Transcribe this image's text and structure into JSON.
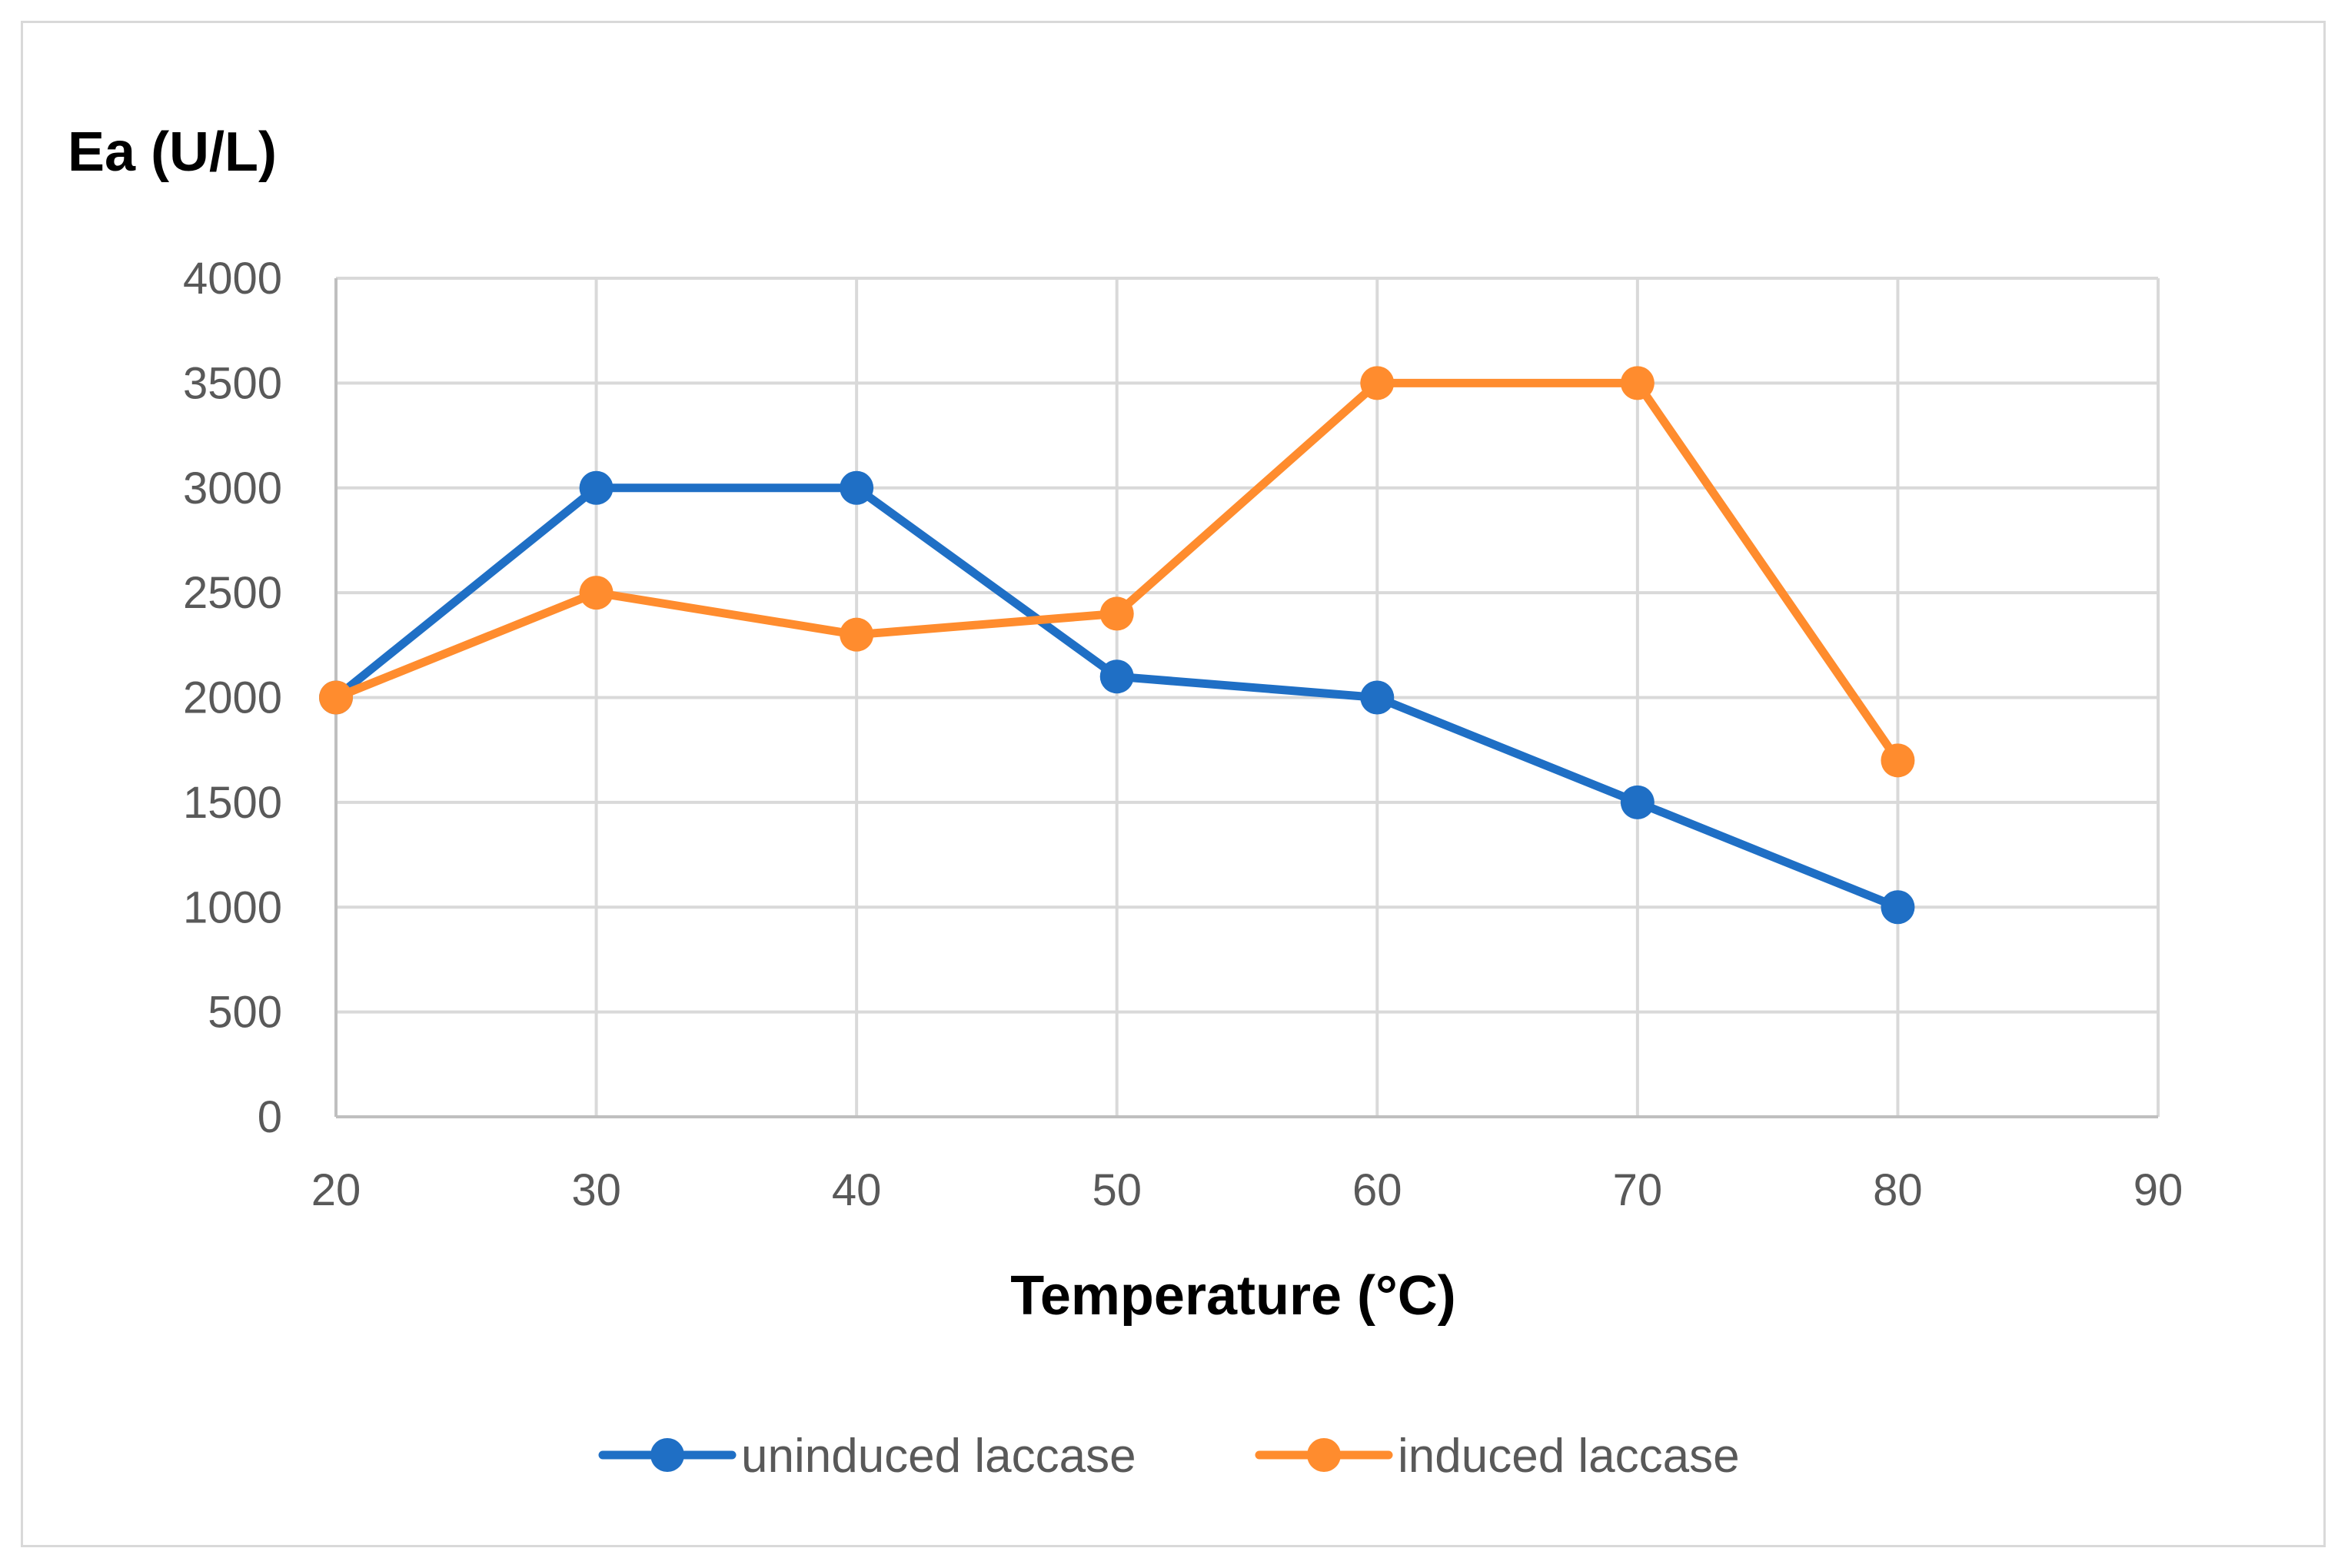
{
  "chart_data": {
    "type": "line",
    "title": "",
    "xlabel": "Temperature (°C)",
    "ylabel": "Ea (U/L)",
    "xlim": [
      20,
      90
    ],
    "ylim": [
      0,
      4000
    ],
    "x_ticks": [
      20,
      30,
      40,
      50,
      60,
      70,
      80,
      90
    ],
    "y_ticks": [
      0,
      500,
      1000,
      1500,
      2000,
      2500,
      3000,
      3500,
      4000
    ],
    "grid": true,
    "legend_position": "bottom",
    "series": [
      {
        "name": "uninduced laccase",
        "color": "#1f6fc5",
        "x": [
          20,
          30,
          40,
          50,
          60,
          70,
          80
        ],
        "y": [
          2000,
          3000,
          3000,
          2100,
          2000,
          1500,
          1000
        ]
      },
      {
        "name": "induced laccase",
        "color": "#ff8c2e",
        "x": [
          20,
          30,
          40,
          50,
          60,
          70,
          80
        ],
        "y": [
          2000,
          2500,
          2300,
          2400,
          3500,
          3500,
          1700
        ]
      }
    ]
  }
}
